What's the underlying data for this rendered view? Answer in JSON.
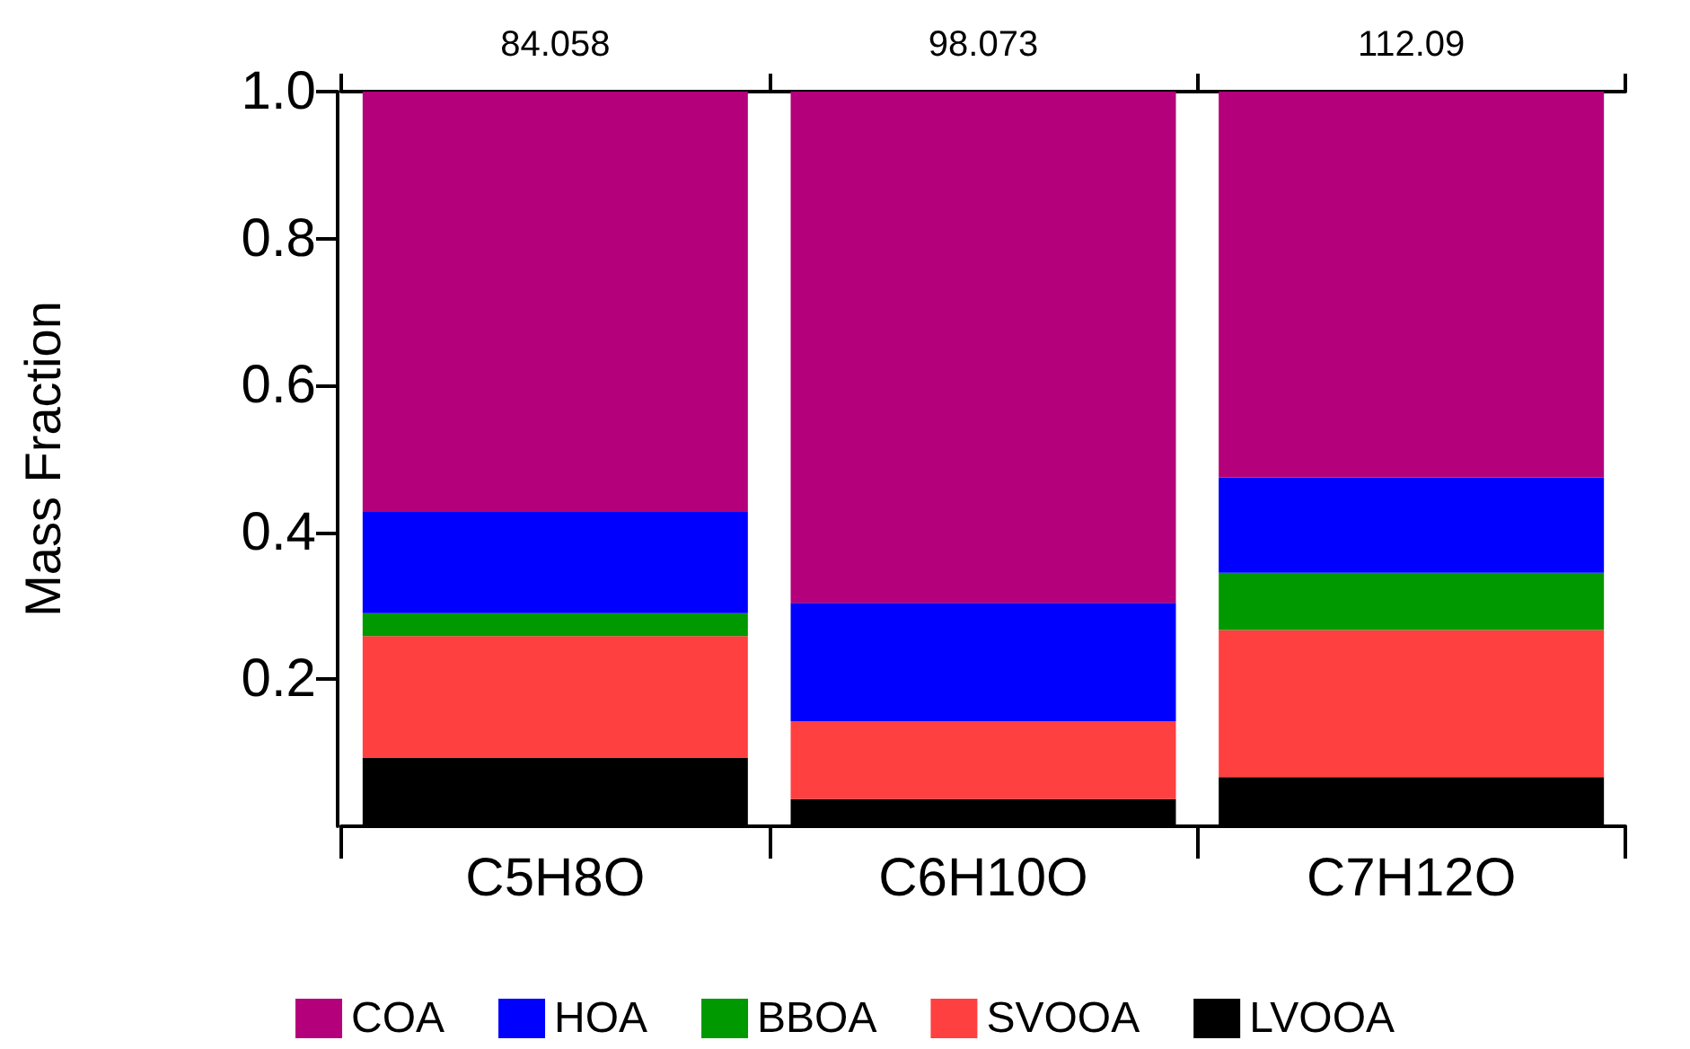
{
  "chart_data": {
    "type": "bar",
    "stacked": true,
    "ylabel": "Mass Fraction",
    "categories": [
      "C5H8O",
      "C6H10O",
      "C7H12O"
    ],
    "series": [
      {
        "name": "LVOOA",
        "color": "#000000",
        "values": [
          0.093,
          0.037,
          0.067
        ]
      },
      {
        "name": "SVOOA",
        "color": "#ff4040",
        "values": [
          0.166,
          0.106,
          0.2
        ]
      },
      {
        "name": "BBOA",
        "color": "#009900",
        "values": [
          0.031,
          0,
          0.078
        ]
      },
      {
        "name": "HOA",
        "color": "#0000ff",
        "values": [
          0.138,
          0.161,
          0.13
        ]
      },
      {
        "name": "COA",
        "color": "#b4007a",
        "values": [
          0.572,
          0.696,
          0.525
        ]
      }
    ],
    "ylim": [
      0,
      1.0
    ],
    "yticks": [
      {
        "value": 0.2,
        "label": "0.2"
      },
      {
        "value": 0.4,
        "label": "0.4"
      },
      {
        "value": 0.6,
        "label": "0.6"
      },
      {
        "value": 0.8,
        "label": "0.8"
      },
      {
        "value": 1.0,
        "label": "1.0"
      }
    ],
    "annotations": [
      "84.058",
      "98.073",
      "112.09"
    ],
    "grid": false,
    "legend": "bottom"
  }
}
